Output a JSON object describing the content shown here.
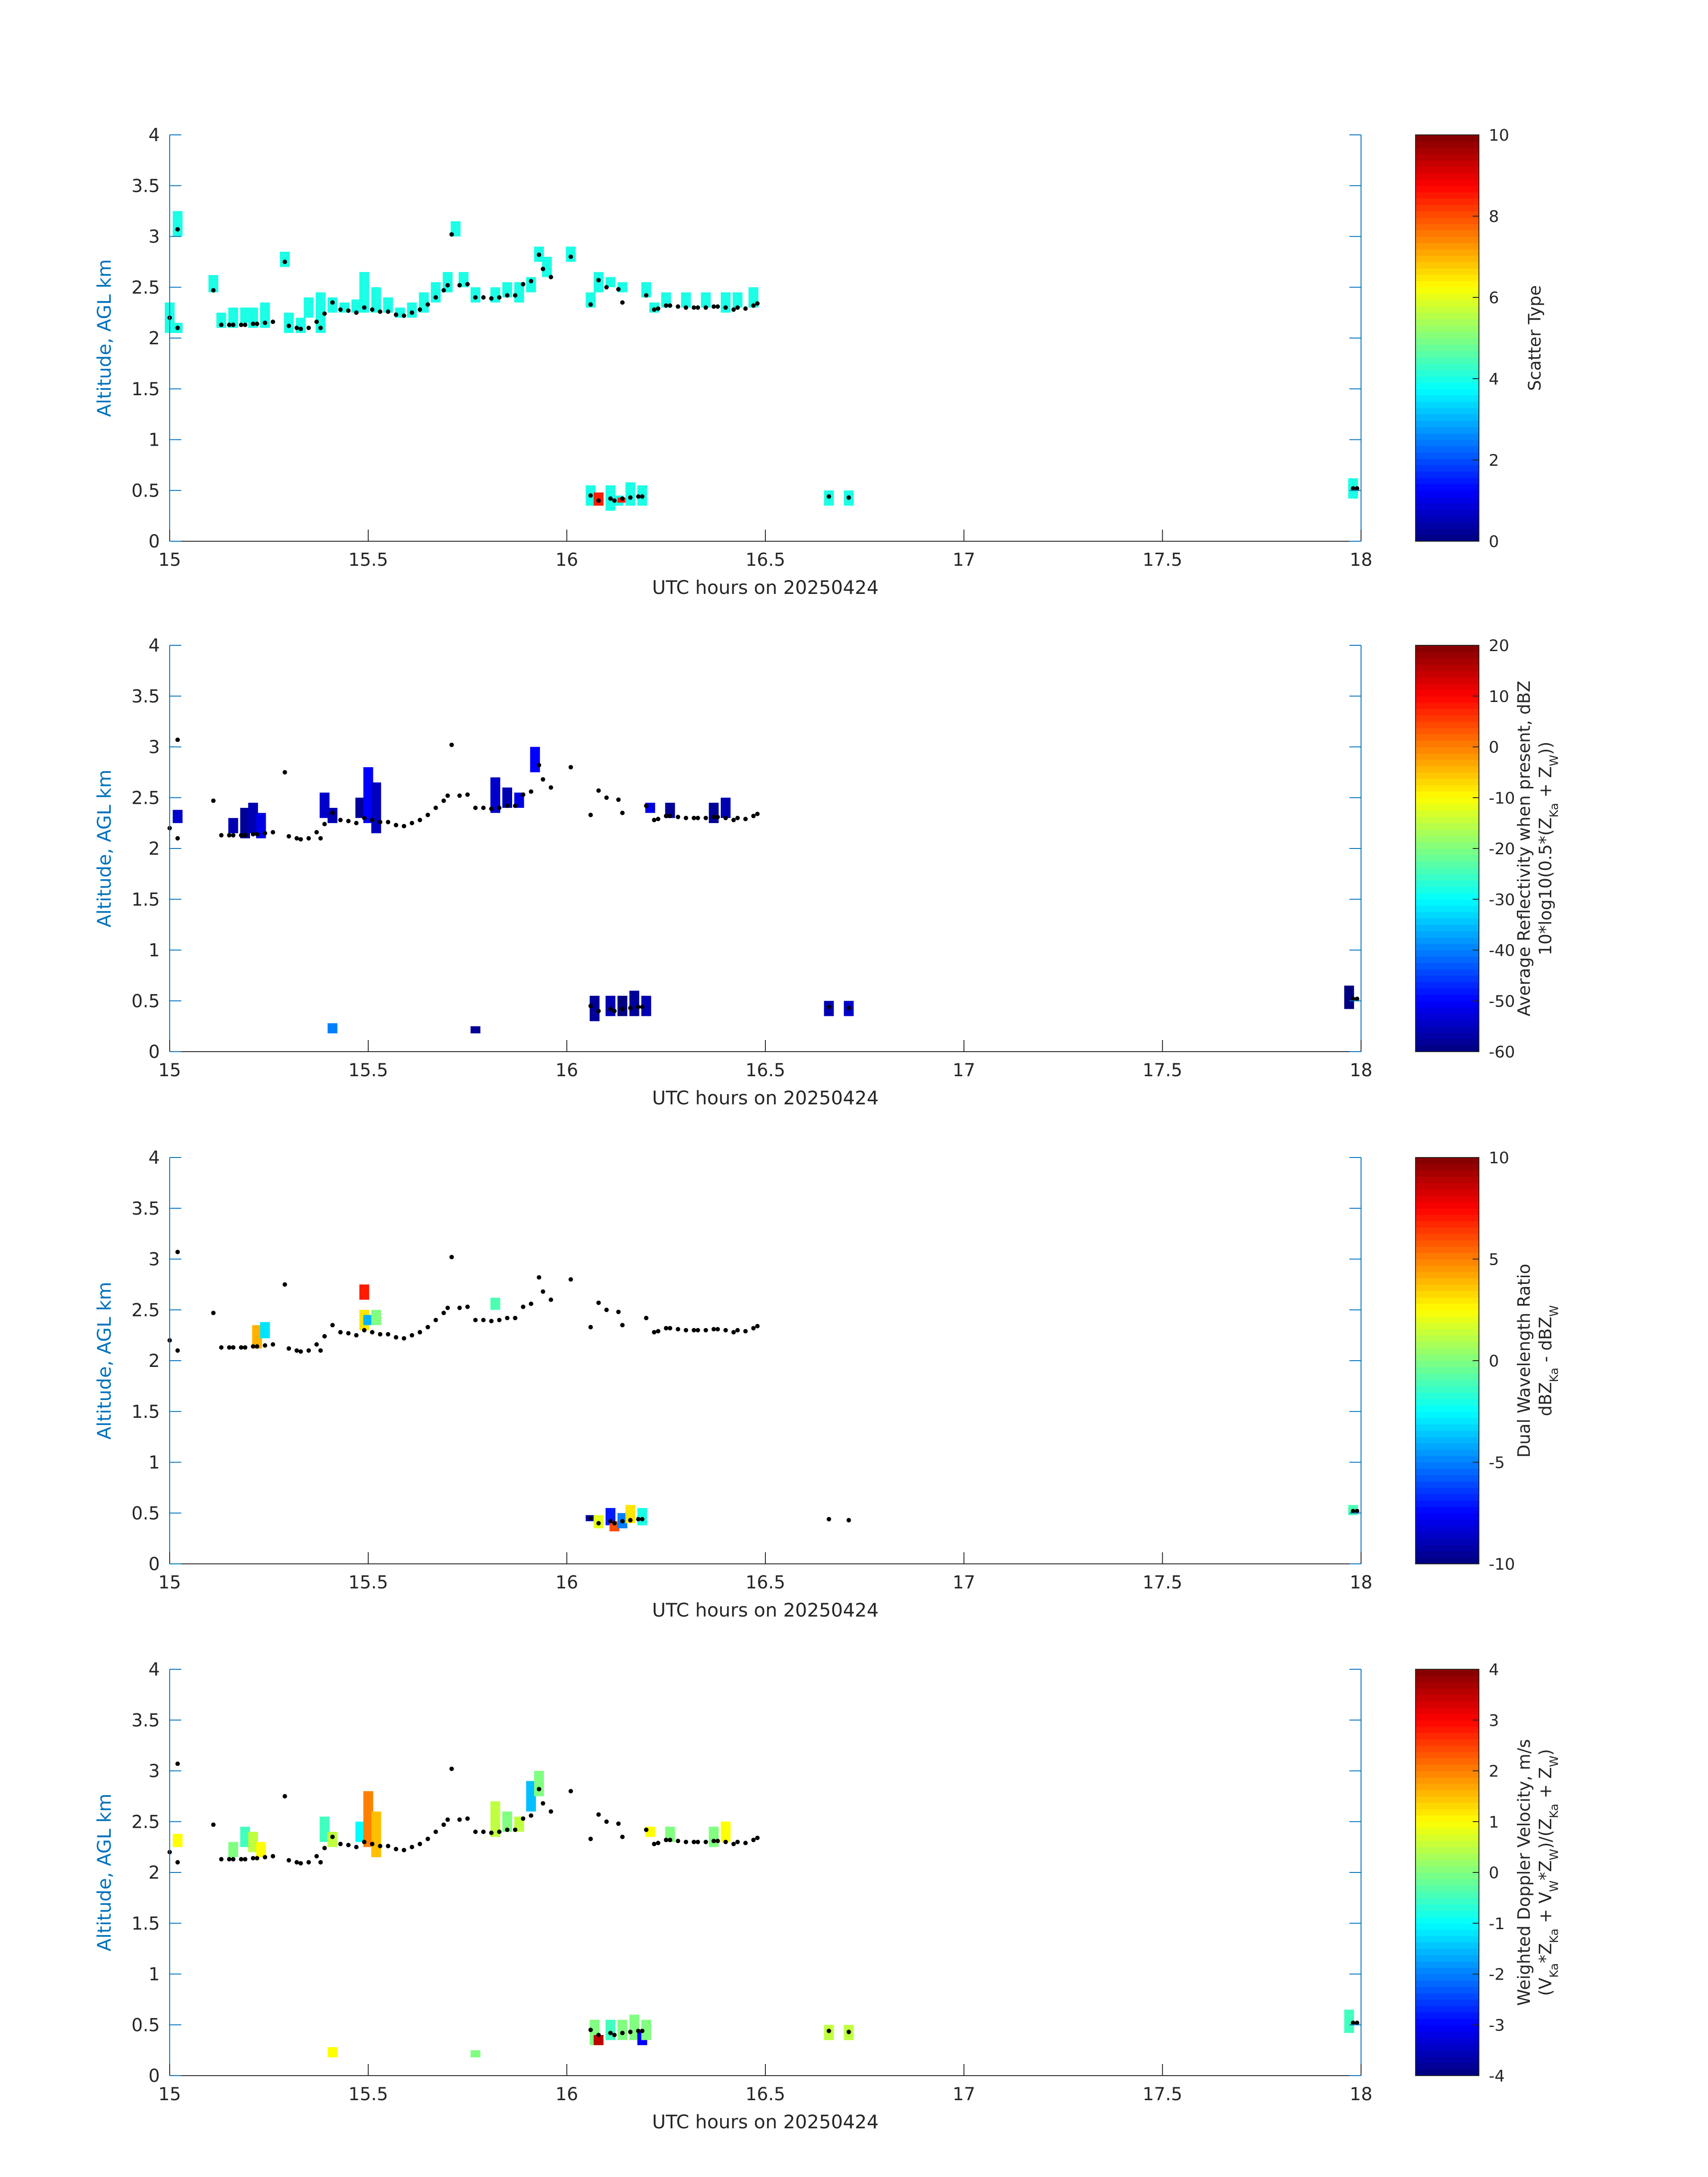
{
  "colors": {
    "axis": "#0072bd",
    "text": "#262626",
    "marker": "#000000"
  },
  "chart_data": [
    {
      "type": "heatmap",
      "xlabel": "UTC hours on 20250424",
      "ylabel": "Altitude, AGL km",
      "xlim": [
        15,
        18
      ],
      "ylim": [
        0,
        4
      ],
      "xticks": [
        "15",
        "15.5",
        "16",
        "16.5",
        "17",
        "17.5",
        "18"
      ],
      "yticks": [
        "0",
        "0.5",
        "1",
        "1.5",
        "2",
        "2.5",
        "3",
        "3.5",
        "4"
      ],
      "colorbar": {
        "label_lines": [
          "Scatter Type"
        ],
        "ticks": [
          "0",
          "2",
          "4",
          "6",
          "8",
          "10"
        ],
        "range": [
          0,
          10
        ],
        "colormap": "jet"
      },
      "pixels": [
        [
          15.0,
          2.05,
          2.35,
          4
        ],
        [
          15.02,
          2.05,
          2.15,
          4
        ],
        [
          15.02,
          3.0,
          3.25,
          4
        ],
        [
          15.11,
          2.45,
          2.62,
          4
        ],
        [
          15.13,
          2.1,
          2.25,
          4
        ],
        [
          15.16,
          2.1,
          2.3,
          4
        ],
        [
          15.19,
          2.15,
          2.3,
          4
        ],
        [
          15.21,
          2.1,
          2.3,
          4
        ],
        [
          15.24,
          2.1,
          2.35,
          4
        ],
        [
          15.29,
          2.7,
          2.85,
          4
        ],
        [
          15.3,
          2.05,
          2.25,
          4
        ],
        [
          15.33,
          2.05,
          2.2,
          4
        ],
        [
          15.35,
          2.2,
          2.4,
          4
        ],
        [
          15.38,
          2.05,
          2.45,
          4
        ],
        [
          15.41,
          2.25,
          2.4,
          4
        ],
        [
          15.44,
          2.25,
          2.35,
          4
        ],
        [
          15.47,
          2.25,
          2.38,
          4
        ],
        [
          15.49,
          2.25,
          2.65,
          4
        ],
        [
          15.52,
          2.25,
          2.5,
          4
        ],
        [
          15.55,
          2.25,
          2.4,
          4
        ],
        [
          15.58,
          2.2,
          2.3,
          4
        ],
        [
          15.61,
          2.2,
          2.35,
          4
        ],
        [
          15.64,
          2.25,
          2.45,
          4
        ],
        [
          15.67,
          2.35,
          2.55,
          4
        ],
        [
          15.7,
          2.45,
          2.65,
          4
        ],
        [
          15.72,
          3.0,
          3.15,
          4
        ],
        [
          15.74,
          2.5,
          2.65,
          4
        ],
        [
          15.77,
          2.35,
          2.5,
          4
        ],
        [
          15.82,
          2.35,
          2.5,
          4
        ],
        [
          15.85,
          2.4,
          2.55,
          4
        ],
        [
          15.88,
          2.35,
          2.55,
          4
        ],
        [
          15.91,
          2.45,
          2.6,
          4
        ],
        [
          15.93,
          2.75,
          2.9,
          4
        ],
        [
          15.95,
          2.6,
          2.8,
          4
        ],
        [
          16.01,
          2.75,
          2.9,
          4
        ],
        [
          16.06,
          2.3,
          2.45,
          4
        ],
        [
          16.08,
          2.45,
          2.65,
          4
        ],
        [
          16.11,
          2.5,
          2.6,
          4
        ],
        [
          16.14,
          2.45,
          2.55,
          4
        ],
        [
          16.2,
          2.4,
          2.55,
          4
        ],
        [
          16.22,
          2.25,
          2.35,
          4
        ],
        [
          16.25,
          2.3,
          2.45,
          4
        ],
        [
          16.3,
          2.3,
          2.45,
          4
        ],
        [
          16.35,
          2.3,
          2.45,
          4
        ],
        [
          16.4,
          2.25,
          2.45,
          4
        ],
        [
          16.43,
          2.3,
          2.45,
          4
        ],
        [
          16.47,
          2.3,
          2.5,
          4
        ],
        [
          16.06,
          0.35,
          0.55,
          4
        ],
        [
          16.08,
          0.35,
          0.48,
          8.5
        ],
        [
          16.11,
          0.3,
          0.55,
          4
        ],
        [
          16.13,
          0.35,
          0.45,
          4
        ],
        [
          16.14,
          0.38,
          0.43,
          8.5
        ],
        [
          16.16,
          0.35,
          0.58,
          4
        ],
        [
          16.19,
          0.35,
          0.55,
          4
        ],
        [
          16.66,
          0.35,
          0.5,
          4
        ],
        [
          16.71,
          0.35,
          0.5,
          4
        ],
        [
          17.98,
          0.42,
          0.62,
          4
        ]
      ]
    },
    {
      "type": "heatmap",
      "xlabel": "UTC hours on 20250424",
      "ylabel": "Altitude, AGL km",
      "xlim": [
        15,
        18
      ],
      "ylim": [
        0,
        4
      ],
      "xticks": [
        "15",
        "15.5",
        "16",
        "16.5",
        "17",
        "17.5",
        "18"
      ],
      "yticks": [
        "0",
        "0.5",
        "1",
        "1.5",
        "2",
        "2.5",
        "3",
        "3.5",
        "4"
      ],
      "colorbar": {
        "label_lines": [
          "Average Reflectivity when present, dBZ",
          "10*log10(0.5*(Z_Ka + Z_W))"
        ],
        "ticks": [
          "-60",
          "-50",
          "-40",
          "-30",
          "-20",
          "-10",
          "0",
          "10",
          "20"
        ],
        "range": [
          -60,
          20
        ],
        "colormap": "jet"
      },
      "pixels": [
        [
          15.02,
          2.25,
          2.38,
          -54
        ],
        [
          15.16,
          2.15,
          2.3,
          -56
        ],
        [
          15.19,
          2.1,
          2.4,
          -58
        ],
        [
          15.21,
          2.15,
          2.45,
          -56
        ],
        [
          15.23,
          2.1,
          2.35,
          -52
        ],
        [
          15.39,
          2.3,
          2.55,
          -54
        ],
        [
          15.41,
          2.25,
          2.4,
          -56
        ],
        [
          15.41,
          0.18,
          0.28,
          -40
        ],
        [
          15.48,
          2.3,
          2.5,
          -58
        ],
        [
          15.5,
          2.25,
          2.8,
          -50
        ],
        [
          15.52,
          2.15,
          2.65,
          -55
        ],
        [
          15.77,
          0.18,
          0.25,
          -58
        ],
        [
          15.82,
          2.35,
          2.7,
          -54
        ],
        [
          15.85,
          2.4,
          2.6,
          -56
        ],
        [
          15.88,
          2.4,
          2.55,
          -52
        ],
        [
          15.92,
          2.75,
          3.0,
          -50
        ],
        [
          16.07,
          0.3,
          0.55,
          -58
        ],
        [
          16.11,
          0.35,
          0.55,
          -56
        ],
        [
          16.14,
          0.35,
          0.55,
          -60
        ],
        [
          16.17,
          0.35,
          0.6,
          -58
        ],
        [
          16.2,
          0.35,
          0.55,
          -56
        ],
        [
          16.21,
          2.35,
          2.45,
          -52
        ],
        [
          16.26,
          2.3,
          2.45,
          -58
        ],
        [
          16.37,
          2.25,
          2.45,
          -58
        ],
        [
          16.4,
          2.3,
          2.5,
          -56
        ],
        [
          16.66,
          0.35,
          0.5,
          -56
        ],
        [
          16.71,
          0.35,
          0.5,
          -54
        ],
        [
          17.97,
          0.42,
          0.65,
          -60
        ]
      ]
    },
    {
      "type": "heatmap",
      "xlabel": "UTC hours on 20250424",
      "ylabel": "Altitude, AGL km",
      "xlim": [
        15,
        18
      ],
      "ylim": [
        0,
        4
      ],
      "xticks": [
        "15",
        "15.5",
        "16",
        "16.5",
        "17",
        "17.5",
        "18"
      ],
      "yticks": [
        "0",
        "0.5",
        "1",
        "1.5",
        "2",
        "2.5",
        "3",
        "3.5",
        "4"
      ],
      "colorbar": {
        "label_lines": [
          "Dual Wavelength Ratio",
          "dBZ_Ka - dBZ_W"
        ],
        "ticks": [
          "-10",
          "-5",
          "0",
          "5",
          "10"
        ],
        "range": [
          -10,
          10
        ],
        "colormap": "jet"
      },
      "pixels": [
        [
          15.22,
          2.12,
          2.35,
          4
        ],
        [
          15.24,
          2.22,
          2.38,
          -3
        ],
        [
          15.49,
          2.3,
          2.5,
          3
        ],
        [
          15.49,
          2.6,
          2.75,
          7
        ],
        [
          15.5,
          2.35,
          2.45,
          -4
        ],
        [
          15.52,
          2.35,
          2.5,
          0
        ],
        [
          15.82,
          2.5,
          2.62,
          -1
        ],
        [
          16.06,
          0.42,
          0.48,
          -9
        ],
        [
          16.08,
          0.35,
          0.48,
          2
        ],
        [
          16.11,
          0.38,
          0.55,
          -7
        ],
        [
          16.12,
          0.32,
          0.42,
          6
        ],
        [
          16.14,
          0.35,
          0.5,
          -5
        ],
        [
          16.16,
          0.4,
          0.58,
          3
        ],
        [
          16.19,
          0.38,
          0.55,
          -2
        ],
        [
          17.98,
          0.48,
          0.58,
          -1
        ]
      ]
    },
    {
      "type": "heatmap",
      "xlabel": "UTC hours on 20250424",
      "ylabel": "Altitude, AGL km",
      "xlim": [
        15,
        18
      ],
      "ylim": [
        0,
        4
      ],
      "xticks": [
        "15",
        "15.5",
        "16",
        "16.5",
        "17",
        "17.5",
        "18"
      ],
      "yticks": [
        "0",
        "0.5",
        "1",
        "1.5",
        "2",
        "2.5",
        "3",
        "3.5",
        "4"
      ],
      "colorbar": {
        "label_lines": [
          "Weighted Doppler Velocity, m/s",
          "(V_Ka*Z_Ka + V_W*Z_W)/(Z_Ka + Z_W)"
        ],
        "ticks": [
          "-4",
          "-3",
          "-2",
          "-1",
          "0",
          "1",
          "2",
          "3",
          "4"
        ],
        "range": [
          -4,
          4
        ],
        "colormap": "jet"
      },
      "pixels": [
        [
          15.02,
          2.25,
          2.38,
          1
        ],
        [
          15.16,
          2.15,
          2.3,
          0
        ],
        [
          15.19,
          2.25,
          2.45,
          -0.5
        ],
        [
          15.21,
          2.2,
          2.4,
          0.5
        ],
        [
          15.23,
          2.15,
          2.3,
          1
        ],
        [
          15.39,
          2.3,
          2.55,
          -0.5
        ],
        [
          15.41,
          2.25,
          2.4,
          0.5
        ],
        [
          15.41,
          0.18,
          0.28,
          1
        ],
        [
          15.48,
          2.3,
          2.5,
          -1
        ],
        [
          15.5,
          2.25,
          2.8,
          2
        ],
        [
          15.52,
          2.15,
          2.6,
          1.5
        ],
        [
          15.77,
          0.18,
          0.25,
          0
        ],
        [
          15.82,
          2.35,
          2.7,
          0.5
        ],
        [
          15.85,
          2.4,
          2.6,
          0
        ],
        [
          15.88,
          2.4,
          2.55,
          0.5
        ],
        [
          15.91,
          2.6,
          2.9,
          -1.5
        ],
        [
          15.93,
          2.75,
          3.0,
          0
        ],
        [
          16.07,
          0.3,
          0.55,
          0
        ],
        [
          16.08,
          0.3,
          0.4,
          3.5
        ],
        [
          16.11,
          0.35,
          0.55,
          -0.5
        ],
        [
          16.14,
          0.35,
          0.55,
          0
        ],
        [
          16.17,
          0.35,
          0.6,
          0
        ],
        [
          16.19,
          0.3,
          0.45,
          -3
        ],
        [
          16.2,
          0.35,
          0.55,
          0
        ],
        [
          16.21,
          2.35,
          2.45,
          1
        ],
        [
          16.26,
          2.3,
          2.45,
          0
        ],
        [
          16.37,
          2.25,
          2.45,
          0
        ],
        [
          16.4,
          2.3,
          2.5,
          1
        ],
        [
          16.66,
          0.35,
          0.5,
          0.5
        ],
        [
          16.71,
          0.35,
          0.5,
          0.5
        ],
        [
          17.97,
          0.42,
          0.65,
          -0.5
        ]
      ]
    }
  ],
  "markers": [
    [
      15.0,
      2.2
    ],
    [
      15.02,
      2.1
    ],
    [
      15.02,
      3.07
    ],
    [
      15.11,
      2.47
    ],
    [
      15.13,
      2.13
    ],
    [
      15.15,
      2.13
    ],
    [
      15.16,
      2.13
    ],
    [
      15.18,
      2.13
    ],
    [
      15.19,
      2.13
    ],
    [
      15.21,
      2.14
    ],
    [
      15.22,
      2.14
    ],
    [
      15.24,
      2.15
    ],
    [
      15.26,
      2.16
    ],
    [
      15.29,
      2.75
    ],
    [
      15.3,
      2.12
    ],
    [
      15.32,
      2.1
    ],
    [
      15.33,
      2.09
    ],
    [
      15.35,
      2.1
    ],
    [
      15.37,
      2.16
    ],
    [
      15.38,
      2.1
    ],
    [
      15.39,
      2.24
    ],
    [
      15.41,
      2.35
    ],
    [
      15.43,
      2.28
    ],
    [
      15.45,
      2.27
    ],
    [
      15.47,
      2.25
    ],
    [
      15.49,
      2.3
    ],
    [
      15.51,
      2.28
    ],
    [
      15.53,
      2.26
    ],
    [
      15.55,
      2.26
    ],
    [
      15.57,
      2.23
    ],
    [
      15.59,
      2.22
    ],
    [
      15.61,
      2.25
    ],
    [
      15.63,
      2.28
    ],
    [
      15.65,
      2.33
    ],
    [
      15.67,
      2.4
    ],
    [
      15.69,
      2.47
    ],
    [
      15.7,
      2.52
    ],
    [
      15.71,
      3.02
    ],
    [
      15.73,
      2.52
    ],
    [
      15.75,
      2.53
    ],
    [
      15.77,
      2.4
    ],
    [
      15.79,
      2.4
    ],
    [
      15.81,
      2.39
    ],
    [
      15.83,
      2.4
    ],
    [
      15.85,
      2.42
    ],
    [
      15.87,
      2.42
    ],
    [
      15.89,
      2.53
    ],
    [
      15.91,
      2.56
    ],
    [
      15.93,
      2.82
    ],
    [
      15.94,
      2.68
    ],
    [
      15.96,
      2.6
    ],
    [
      16.01,
      2.8
    ],
    [
      16.06,
      2.33
    ],
    [
      16.08,
      2.57
    ],
    [
      16.1,
      2.5
    ],
    [
      16.13,
      2.48
    ],
    [
      16.14,
      2.35
    ],
    [
      16.2,
      2.42
    ],
    [
      16.22,
      2.28
    ],
    [
      16.23,
      2.29
    ],
    [
      16.25,
      2.32
    ],
    [
      16.26,
      2.32
    ],
    [
      16.28,
      2.31
    ],
    [
      16.3,
      2.3
    ],
    [
      16.32,
      2.3
    ],
    [
      16.33,
      2.3
    ],
    [
      16.35,
      2.3
    ],
    [
      16.37,
      2.31
    ],
    [
      16.38,
      2.31
    ],
    [
      16.4,
      2.3
    ],
    [
      16.42,
      2.28
    ],
    [
      16.43,
      2.3
    ],
    [
      16.45,
      2.29
    ],
    [
      16.47,
      2.32
    ],
    [
      16.48,
      2.34
    ],
    [
      16.06,
      0.45
    ],
    [
      16.08,
      0.4
    ],
    [
      16.11,
      0.42
    ],
    [
      16.12,
      0.4
    ],
    [
      16.14,
      0.42
    ],
    [
      16.16,
      0.43
    ],
    [
      16.18,
      0.44
    ],
    [
      16.19,
      0.44
    ],
    [
      16.66,
      0.44
    ],
    [
      16.71,
      0.43
    ],
    [
      17.98,
      0.52
    ],
    [
      17.99,
      0.52
    ]
  ]
}
